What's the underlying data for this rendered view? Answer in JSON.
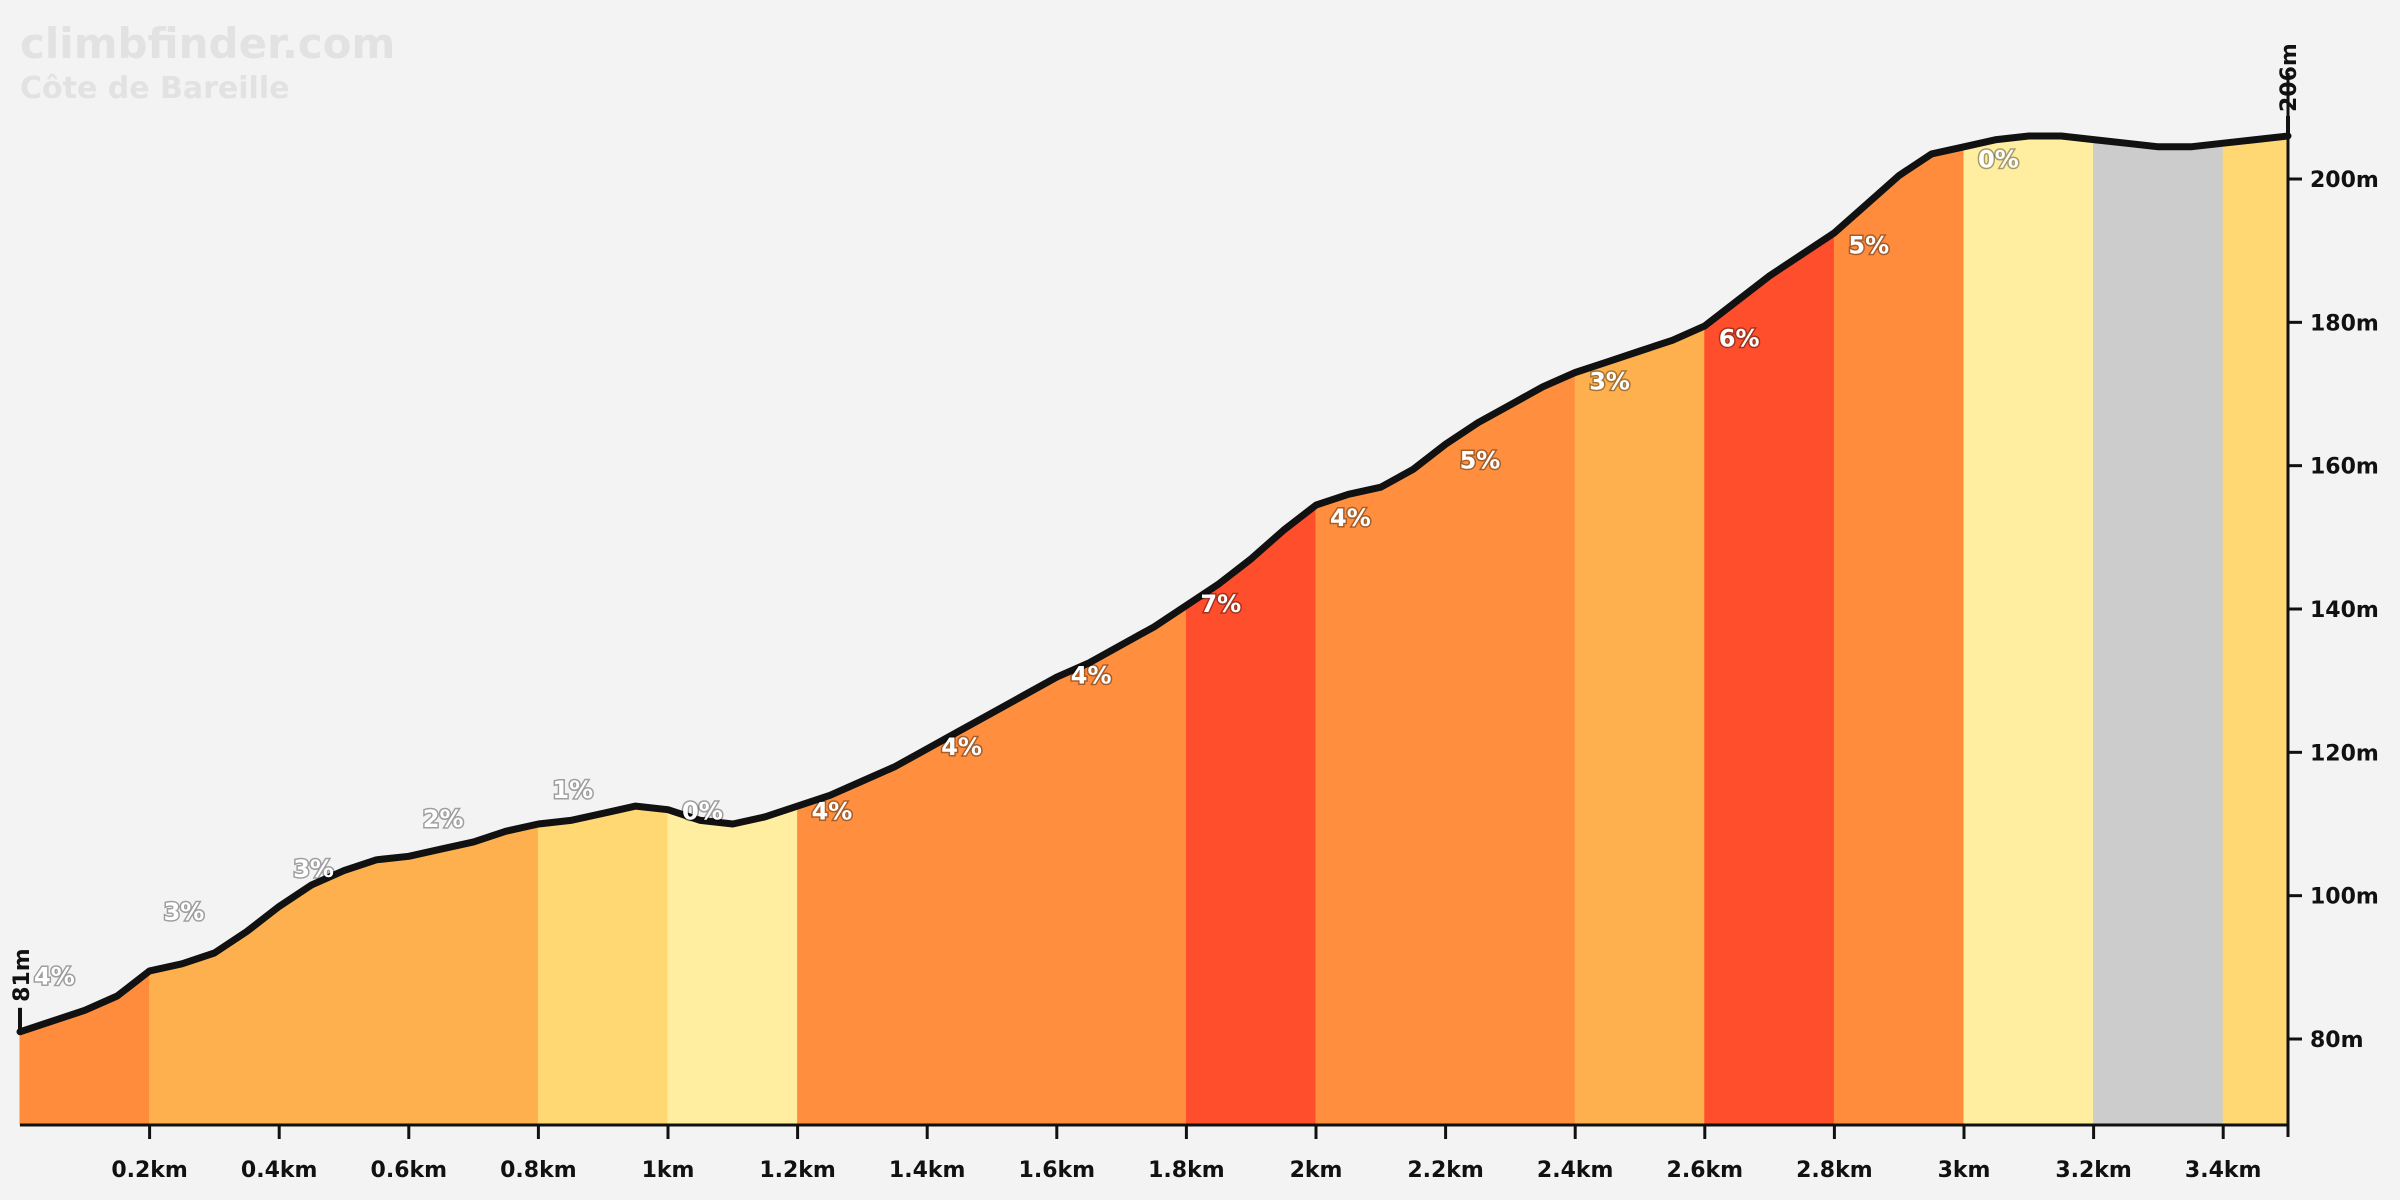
{
  "watermark": {
    "site": "climbfinder.com",
    "climb_name": "Côte de Bareille"
  },
  "colors": {
    "background": "#f3f3f3",
    "profile_line": "#111111",
    "gradient_scale": {
      "-1": "#cccccc",
      "0": "#ffeea0",
      "1": "#ffd873",
      "2": "#ffb84d",
      "3": "#ffb04e",
      "4": "#ff8f3e",
      "5": "#ff8c3c",
      "6": "#fe4e2c",
      "7": "#fe4e2c"
    }
  },
  "chart_data": {
    "type": "area",
    "title": "",
    "xlabel": "",
    "ylabel": "",
    "xlim": [
      0,
      3.5
    ],
    "ylim": [
      68,
      212
    ],
    "x_unit": "km",
    "y_unit": "m",
    "x_ticks": [
      {
        "value": 0.2,
        "label": "0.2km"
      },
      {
        "value": 0.4,
        "label": "0.4km"
      },
      {
        "value": 0.6,
        "label": "0.6km"
      },
      {
        "value": 0.8,
        "label": "0.8km"
      },
      {
        "value": 1.0,
        "label": "1km"
      },
      {
        "value": 1.2,
        "label": "1.2km"
      },
      {
        "value": 1.4,
        "label": "1.4km"
      },
      {
        "value": 1.6,
        "label": "1.6km"
      },
      {
        "value": 1.8,
        "label": "1.8km"
      },
      {
        "value": 2.0,
        "label": "2km"
      },
      {
        "value": 2.2,
        "label": "2.2km"
      },
      {
        "value": 2.4,
        "label": "2.4km"
      },
      {
        "value": 2.6,
        "label": "2.6km"
      },
      {
        "value": 2.8,
        "label": "2.8km"
      },
      {
        "value": 3.0,
        "label": "3km"
      },
      {
        "value": 3.2,
        "label": "3.2km"
      },
      {
        "value": 3.4,
        "label": "3.4km"
      }
    ],
    "y_ticks": [
      {
        "value": 80,
        "label": "80m"
      },
      {
        "value": 100,
        "label": "100m"
      },
      {
        "value": 120,
        "label": "120m"
      },
      {
        "value": 140,
        "label": "140m"
      },
      {
        "value": 160,
        "label": "160m"
      },
      {
        "value": 180,
        "label": "180m"
      },
      {
        "value": 200,
        "label": "200m"
      }
    ],
    "start_elevation": {
      "value": 81,
      "label": "81m"
    },
    "end_elevation": {
      "value": 206,
      "label": "206m"
    },
    "segments": [
      {
        "start": 0.0,
        "end": 0.2,
        "gradient": 4,
        "label": "4%",
        "label_y": 89,
        "color": "#ff8c3c"
      },
      {
        "start": 0.2,
        "end": 0.4,
        "gradient": 3,
        "label": "3%",
        "label_y": 98,
        "color": "#ffb04e"
      },
      {
        "start": 0.4,
        "end": 0.6,
        "gradient": 3,
        "label": "3%",
        "label_y": 104,
        "color": "#ffb04e"
      },
      {
        "start": 0.6,
        "end": 0.8,
        "gradient": 2,
        "label": "2%",
        "label_y": 111,
        "color": "#ffb04e"
      },
      {
        "start": 0.8,
        "end": 1.0,
        "gradient": 1,
        "label": "1%",
        "label_y": 115,
        "color": "#ffd873"
      },
      {
        "start": 1.0,
        "end": 1.2,
        "gradient": 0,
        "label": "0%",
        "label_y": 112,
        "color": "#ffeea0"
      },
      {
        "start": 1.2,
        "end": 1.4,
        "gradient": 4,
        "label": "4%",
        "label_y": 112,
        "color": "#ff8f3e"
      },
      {
        "start": 1.4,
        "end": 1.6,
        "gradient": 4,
        "label": "4%",
        "label_y": 121,
        "color": "#ff8f3e"
      },
      {
        "start": 1.6,
        "end": 1.8,
        "gradient": 4,
        "label": "4%",
        "label_y": 131,
        "color": "#ff8f3e"
      },
      {
        "start": 1.8,
        "end": 2.0,
        "gradient": 7,
        "label": "7%",
        "label_y": 141,
        "color": "#fe4e2c"
      },
      {
        "start": 2.0,
        "end": 2.2,
        "gradient": 4,
        "label": "4%",
        "label_y": 153,
        "color": "#ff8f3e"
      },
      {
        "start": 2.2,
        "end": 2.4,
        "gradient": 5,
        "label": "5%",
        "label_y": 161,
        "color": "#ff8f3e"
      },
      {
        "start": 2.4,
        "end": 2.6,
        "gradient": 3,
        "label": "3%",
        "label_y": 172,
        "color": "#ffb04e"
      },
      {
        "start": 2.6,
        "end": 2.8,
        "gradient": 6,
        "label": "6%",
        "label_y": 178,
        "color": "#fe4e2c"
      },
      {
        "start": 2.8,
        "end": 3.0,
        "gradient": 5,
        "label": "5%",
        "label_y": 191,
        "color": "#ff8c3c"
      },
      {
        "start": 3.0,
        "end": 3.2,
        "gradient": 0,
        "label": "0%",
        "label_y": 203,
        "color": "#ffeea0"
      },
      {
        "start": 3.2,
        "end": 3.4,
        "gradient": -1,
        "label": "",
        "label_y": 0,
        "color": "#cccccc"
      },
      {
        "start": 3.4,
        "end": 3.5,
        "gradient": 1,
        "label": "",
        "label_y": 0,
        "color": "#ffd873"
      }
    ],
    "profile": [
      [
        0.0,
        81
      ],
      [
        0.05,
        82.5
      ],
      [
        0.1,
        84
      ],
      [
        0.15,
        86
      ],
      [
        0.2,
        89.5
      ],
      [
        0.25,
        90.5
      ],
      [
        0.3,
        92
      ],
      [
        0.35,
        95
      ],
      [
        0.4,
        98.5
      ],
      [
        0.45,
        101.5
      ],
      [
        0.5,
        103.5
      ],
      [
        0.55,
        105
      ],
      [
        0.6,
        105.5
      ],
      [
        0.65,
        106.5
      ],
      [
        0.7,
        107.5
      ],
      [
        0.75,
        109
      ],
      [
        0.8,
        110
      ],
      [
        0.85,
        110.5
      ],
      [
        0.9,
        111.5
      ],
      [
        0.95,
        112.5
      ],
      [
        1.0,
        112
      ],
      [
        1.05,
        110.5
      ],
      [
        1.1,
        110
      ],
      [
        1.15,
        111
      ],
      [
        1.2,
        112.5
      ],
      [
        1.25,
        114
      ],
      [
        1.3,
        116
      ],
      [
        1.35,
        118
      ],
      [
        1.4,
        120.5
      ],
      [
        1.45,
        123
      ],
      [
        1.5,
        125.5
      ],
      [
        1.55,
        128
      ],
      [
        1.6,
        130.5
      ],
      [
        1.65,
        132.5
      ],
      [
        1.7,
        135
      ],
      [
        1.75,
        137.5
      ],
      [
        1.8,
        140.5
      ],
      [
        1.85,
        143.5
      ],
      [
        1.9,
        147
      ],
      [
        1.95,
        151
      ],
      [
        2.0,
        154.5
      ],
      [
        2.05,
        156
      ],
      [
        2.1,
        157
      ],
      [
        2.15,
        159.5
      ],
      [
        2.2,
        163
      ],
      [
        2.25,
        166
      ],
      [
        2.3,
        168.5
      ],
      [
        2.35,
        171
      ],
      [
        2.4,
        173
      ],
      [
        2.45,
        174.5
      ],
      [
        2.5,
        176
      ],
      [
        2.55,
        177.5
      ],
      [
        2.6,
        179.5
      ],
      [
        2.65,
        183
      ],
      [
        2.7,
        186.5
      ],
      [
        2.75,
        189.5
      ],
      [
        2.8,
        192.5
      ],
      [
        2.85,
        196.5
      ],
      [
        2.9,
        200.5
      ],
      [
        2.95,
        203.5
      ],
      [
        3.0,
        204.5
      ],
      [
        3.05,
        205.5
      ],
      [
        3.1,
        206
      ],
      [
        3.15,
        206
      ],
      [
        3.2,
        205.5
      ],
      [
        3.25,
        205
      ],
      [
        3.3,
        204.5
      ],
      [
        3.35,
        204.5
      ],
      [
        3.4,
        205
      ],
      [
        3.45,
        205.5
      ],
      [
        3.5,
        206
      ]
    ]
  }
}
